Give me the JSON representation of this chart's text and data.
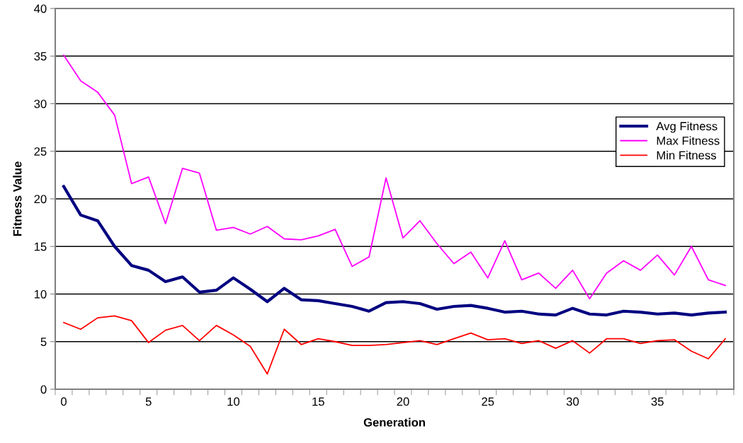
{
  "chart_data": {
    "type": "line",
    "xlabel": "Generation",
    "ylabel": "Fitness Value",
    "x": [
      0,
      1,
      2,
      3,
      4,
      5,
      6,
      7,
      8,
      9,
      10,
      11,
      12,
      13,
      14,
      15,
      16,
      17,
      18,
      19,
      20,
      21,
      22,
      23,
      24,
      25,
      26,
      27,
      28,
      29,
      30,
      31,
      32,
      33,
      34,
      35,
      36,
      37,
      38,
      39
    ],
    "series": [
      {
        "name": "Avg Fitness",
        "color": "#000080",
        "values": [
          21.3,
          18.3,
          17.7,
          15.0,
          13.0,
          12.5,
          11.3,
          11.8,
          10.2,
          10.4,
          11.7,
          10.5,
          9.2,
          10.6,
          9.4,
          9.3,
          9.0,
          8.7,
          8.2,
          9.1,
          9.2,
          9.0,
          8.4,
          8.7,
          8.8,
          8.5,
          8.1,
          8.2,
          7.9,
          7.8,
          8.5,
          7.9,
          7.8,
          8.2,
          8.1,
          7.9,
          8.0,
          7.8,
          8.0,
          8.1
        ]
      },
      {
        "name": "Max Fitness",
        "color": "#ff00ff",
        "values": [
          35.1,
          32.4,
          31.2,
          28.8,
          21.6,
          22.3,
          17.4,
          23.2,
          22.7,
          16.7,
          17.0,
          16.3,
          17.1,
          15.8,
          15.7,
          16.1,
          16.8,
          12.9,
          13.9,
          22.2,
          15.9,
          17.7,
          15.3,
          13.2,
          14.4,
          11.7,
          15.6,
          11.5,
          12.2,
          10.6,
          12.5,
          9.5,
          12.2,
          13.5,
          12.5,
          14.1,
          12.0,
          15.0,
          11.5,
          10.9
        ]
      },
      {
        "name": "Min Fitness",
        "color": "#ff0000",
        "values": [
          7.0,
          6.3,
          7.5,
          7.7,
          7.2,
          4.9,
          6.2,
          6.7,
          5.1,
          6.7,
          5.7,
          4.5,
          1.6,
          6.3,
          4.7,
          5.3,
          5.0,
          4.6,
          4.6,
          4.7,
          4.9,
          5.1,
          4.7,
          5.3,
          5.9,
          5.2,
          5.3,
          4.8,
          5.1,
          4.3,
          5.1,
          3.8,
          5.3,
          5.3,
          4.8,
          5.1,
          5.2,
          4.0,
          3.2,
          5.3
        ]
      }
    ],
    "xlim": [
      -0.5,
      39.5
    ],
    "xticks": [
      0,
      5,
      10,
      15,
      20,
      25,
      30,
      35,
      {
        "value": -0.5,
        "label": null
      },
      {
        "value": 0.5,
        "label": null
      },
      {
        "value": 1.5,
        "label": null
      },
      {
        "value": 2.5,
        "label": null
      },
      {
        "value": 3.5,
        "label": null
      },
      {
        "value": 4.5,
        "label": null
      },
      {
        "value": 5.5,
        "label": null
      },
      {
        "value": 6.5,
        "label": null
      },
      {
        "value": 7.5,
        "label": null
      },
      {
        "value": 8.5,
        "label": null
      },
      {
        "value": 9.5,
        "label": null
      },
      {
        "value": 10.5,
        "label": null
      },
      {
        "value": 11.5,
        "label": null
      },
      {
        "value": 12.5,
        "label": null
      },
      {
        "value": 13.5,
        "label": null
      },
      {
        "value": 14.5,
        "label": null
      },
      {
        "value": 15.5,
        "label": null
      },
      {
        "value": 16.5,
        "label": null
      },
      {
        "value": 17.5,
        "label": null
      },
      {
        "value": 18.5,
        "label": null
      },
      {
        "value": 19.5,
        "label": null
      },
      {
        "value": 20.5,
        "label": null
      },
      {
        "value": 21.5,
        "label": null
      },
      {
        "value": 22.5,
        "label": null
      },
      {
        "value": 23.5,
        "label": null
      },
      {
        "value": 24.5,
        "label": null
      },
      {
        "value": 25.5,
        "label": null
      },
      {
        "value": 26.5,
        "label": null
      },
      {
        "value": 27.5,
        "label": null
      },
      {
        "value": 28.5,
        "label": null
      },
      {
        "value": 29.5,
        "label": null
      },
      {
        "value": 30.5,
        "label": null
      },
      {
        "value": 31.5,
        "label": null
      },
      {
        "value": 32.5,
        "label": null
      },
      {
        "value": 33.5,
        "label": null
      },
      {
        "value": 34.5,
        "label": null
      },
      {
        "value": 35.5,
        "label": null
      },
      {
        "value": 36.5,
        "label": null
      },
      {
        "value": 37.5,
        "label": null
      },
      {
        "value": 38.5,
        "label": null
      },
      {
        "value": 39.5,
        "label": null
      }
    ],
    "ylim": [
      0,
      40
    ],
    "yticks": [
      0,
      5,
      10,
      15,
      20,
      25,
      30,
      35,
      40
    ],
    "grid": "y",
    "legend": "right",
    "marker": "none",
    "line_style": "solid"
  }
}
